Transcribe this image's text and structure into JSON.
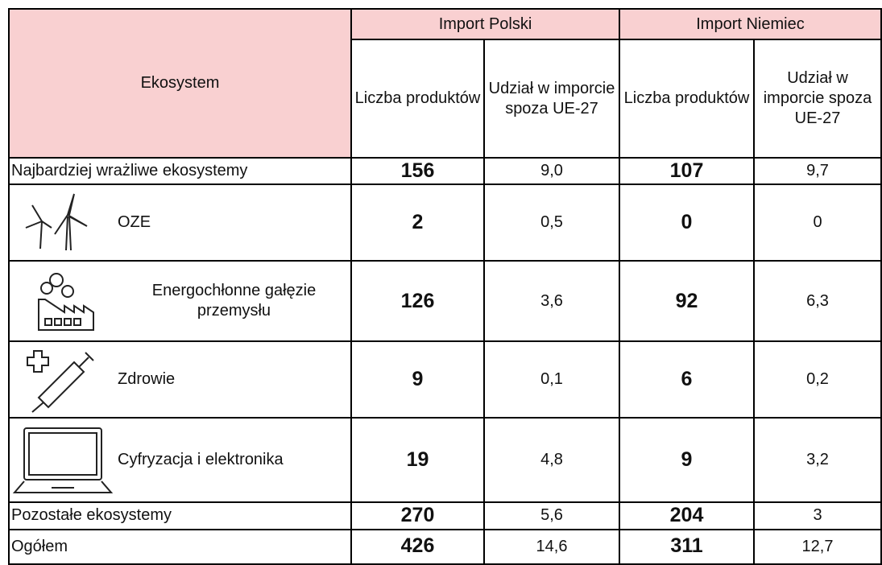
{
  "header": {
    "ekosystem": "Ekosystem",
    "groups": [
      "Import Polski",
      "Import Niemiec"
    ],
    "subheaders": [
      "Liczba produktów",
      "Udział w imporcie spoza UE-27",
      "Liczba produktów",
      "Udział w imporcie spoza UE-27"
    ]
  },
  "rows": [
    {
      "label": "Najbardziej wrażliwe ekosystemy",
      "values": [
        "156",
        "9,0",
        "107",
        "9,7"
      ]
    },
    {
      "label": "OZE",
      "values": [
        "2",
        "0,5",
        "0",
        "0"
      ]
    },
    {
      "label": "Energochłonne gałęzie przemysłu",
      "values": [
        "126",
        "3,6",
        "92",
        "6,3"
      ]
    },
    {
      "label": "Zdrowie",
      "values": [
        "9",
        "0,1",
        "6",
        "0,2"
      ]
    },
    {
      "label": "Cyfryzacja i elektronika",
      "values": [
        "19",
        "4,8",
        "9",
        "3,2"
      ]
    },
    {
      "label": "Pozostałe ekosystemy",
      "values": [
        "270",
        "5,6",
        "204",
        "3"
      ]
    },
    {
      "label": "Ogółem",
      "values": [
        "426",
        "14,6",
        "311",
        "12,7"
      ]
    }
  ]
}
